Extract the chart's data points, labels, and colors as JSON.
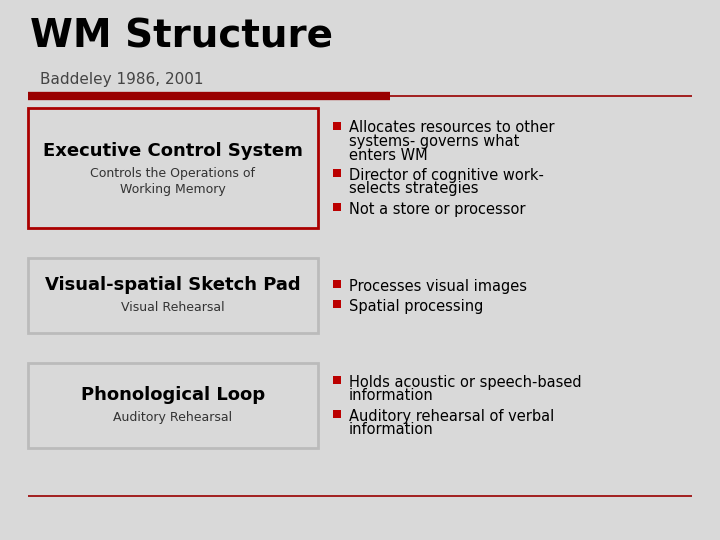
{
  "title": "WM Structure",
  "subtitle": "Baddeley 1986, 2001",
  "bg_color": "#d9d9d9",
  "title_color": "#000000",
  "subtitle_color": "#444444",
  "dark_red": "#990000",
  "red_bullet": "#bb0000",
  "rows": [
    {
      "box_title": "Executive Control System",
      "box_subtitle": "Controls the Operations of\nWorking Memory",
      "box_border": "#aa0000",
      "bullets": [
        "Allocates resources to other\nsystems- governs what\nenters WM",
        "Director of cognitive work-\nselects strategies",
        "Not a store or processor"
      ]
    },
    {
      "box_title": "Visual-spatial Sketch Pad",
      "box_subtitle": "Visual Rehearsal",
      "box_border": "#bbbbbb",
      "bullets": [
        "Processes visual images",
        "Spatial processing"
      ]
    },
    {
      "box_title": "Phonological Loop",
      "box_subtitle": "Auditory Rehearsal",
      "box_border": "#bbbbbb",
      "bullets": [
        "Holds acoustic or speech-based\ninformation",
        "Auditory rehearsal of verbal\ninformation"
      ]
    }
  ]
}
